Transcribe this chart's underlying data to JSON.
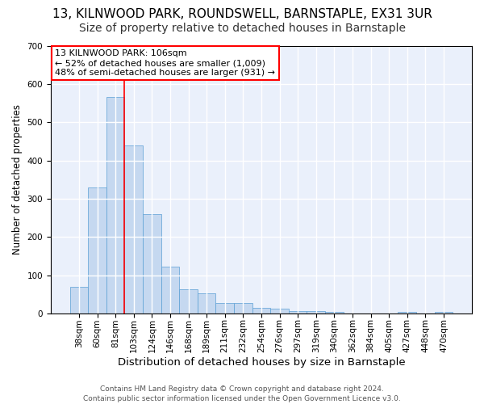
{
  "title": "13, KILNWOOD PARK, ROUNDSWELL, BARNSTAPLE, EX31 3UR",
  "subtitle": "Size of property relative to detached houses in Barnstaple",
  "xlabel": "Distribution of detached houses by size in Barnstaple",
  "ylabel": "Number of detached properties",
  "footer": "Contains HM Land Registry data © Crown copyright and database right 2024.\nContains public sector information licensed under the Open Government Licence v3.0.",
  "categories": [
    "38sqm",
    "60sqm",
    "81sqm",
    "103sqm",
    "124sqm",
    "146sqm",
    "168sqm",
    "189sqm",
    "211sqm",
    "232sqm",
    "254sqm",
    "276sqm",
    "297sqm",
    "319sqm",
    "340sqm",
    "362sqm",
    "384sqm",
    "405sqm",
    "427sqm",
    "448sqm",
    "470sqm"
  ],
  "values": [
    70,
    330,
    565,
    440,
    260,
    122,
    63,
    53,
    28,
    28,
    15,
    13,
    7,
    7,
    5,
    0,
    0,
    0,
    5,
    0,
    5
  ],
  "bar_color": "#c5d8f0",
  "bar_edge_color": "#5a9fd4",
  "vline_index": 3,
  "vline_color": "red",
  "annotation_text": "13 KILNWOOD PARK: 106sqm\n← 52% of detached houses are smaller (1,009)\n48% of semi-detached houses are larger (931) →",
  "annotation_box_color": "white",
  "annotation_box_edge_color": "red",
  "ylim": [
    0,
    700
  ],
  "yticks": [
    0,
    100,
    200,
    300,
    400,
    500,
    600,
    700
  ],
  "bg_color": "#eaf0fb",
  "grid_color": "white",
  "title_fontsize": 11,
  "subtitle_fontsize": 10,
  "xlabel_fontsize": 9.5,
  "ylabel_fontsize": 8.5,
  "tick_fontsize": 7.5,
  "footer_fontsize": 6.5,
  "annotation_fontsize": 8
}
